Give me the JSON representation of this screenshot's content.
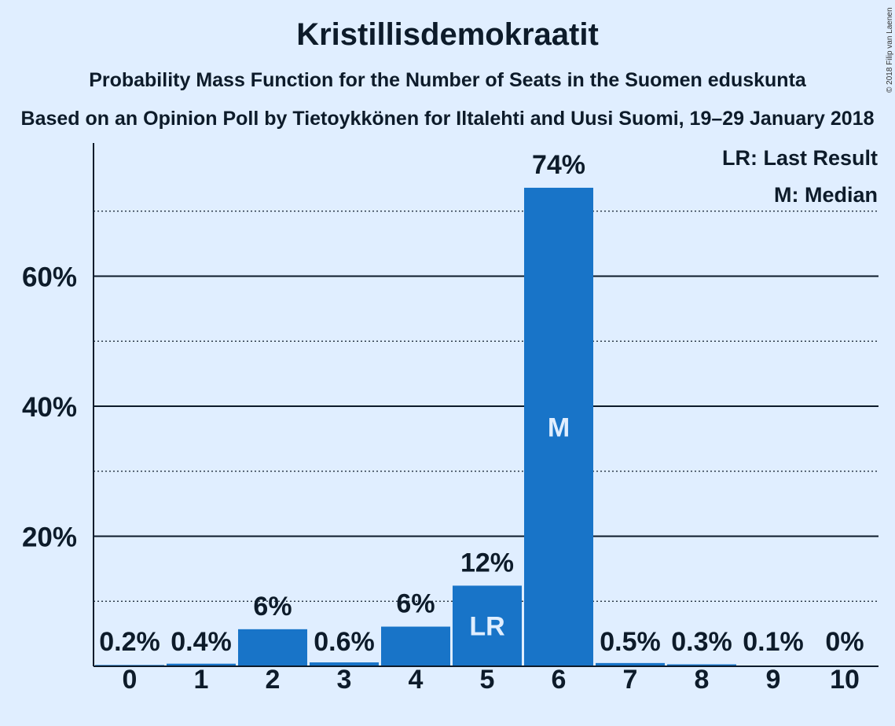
{
  "title": "Kristillisdemokraatit",
  "subtitle": "Probability Mass Function for the Number of Seats in the Suomen eduskunta",
  "subtitle2": "Based on an Opinion Poll by Tietoykkönen for Iltalehti and Uusi Suomi, 19–29 January 2018",
  "copyright": "© 2018 Filip van Laenen",
  "legend": {
    "last_result": "LR: Last Result",
    "median": "M: Median"
  },
  "colors": {
    "bar": "#1874c8",
    "background": "#e0eeff",
    "text": "#0d1b2a",
    "bar_text": "#e0eeff"
  },
  "chart_data": {
    "type": "bar",
    "categories": [
      "0",
      "1",
      "2",
      "3",
      "4",
      "5",
      "6",
      "7",
      "8",
      "9",
      "10"
    ],
    "values": [
      0.2,
      0.4,
      5.7,
      0.6,
      6.1,
      12.4,
      73.6,
      0.5,
      0.3,
      0.1,
      0
    ],
    "labels": [
      "0.2%",
      "0.4%",
      "6%",
      "0.6%",
      "6%",
      "12%",
      "74%",
      "0.5%",
      "0.3%",
      "0.1%",
      "0%"
    ],
    "ylim": [
      0,
      80
    ],
    "yticks": [
      20,
      40,
      60
    ],
    "ytick_labels": [
      "20%",
      "40%",
      "60%"
    ],
    "minor_gridlines": [
      10,
      30,
      50,
      70
    ],
    "last_result_index": 5,
    "last_result_label": "LR",
    "median_index": 6,
    "median_label": "M",
    "legend_position": "top-right"
  }
}
